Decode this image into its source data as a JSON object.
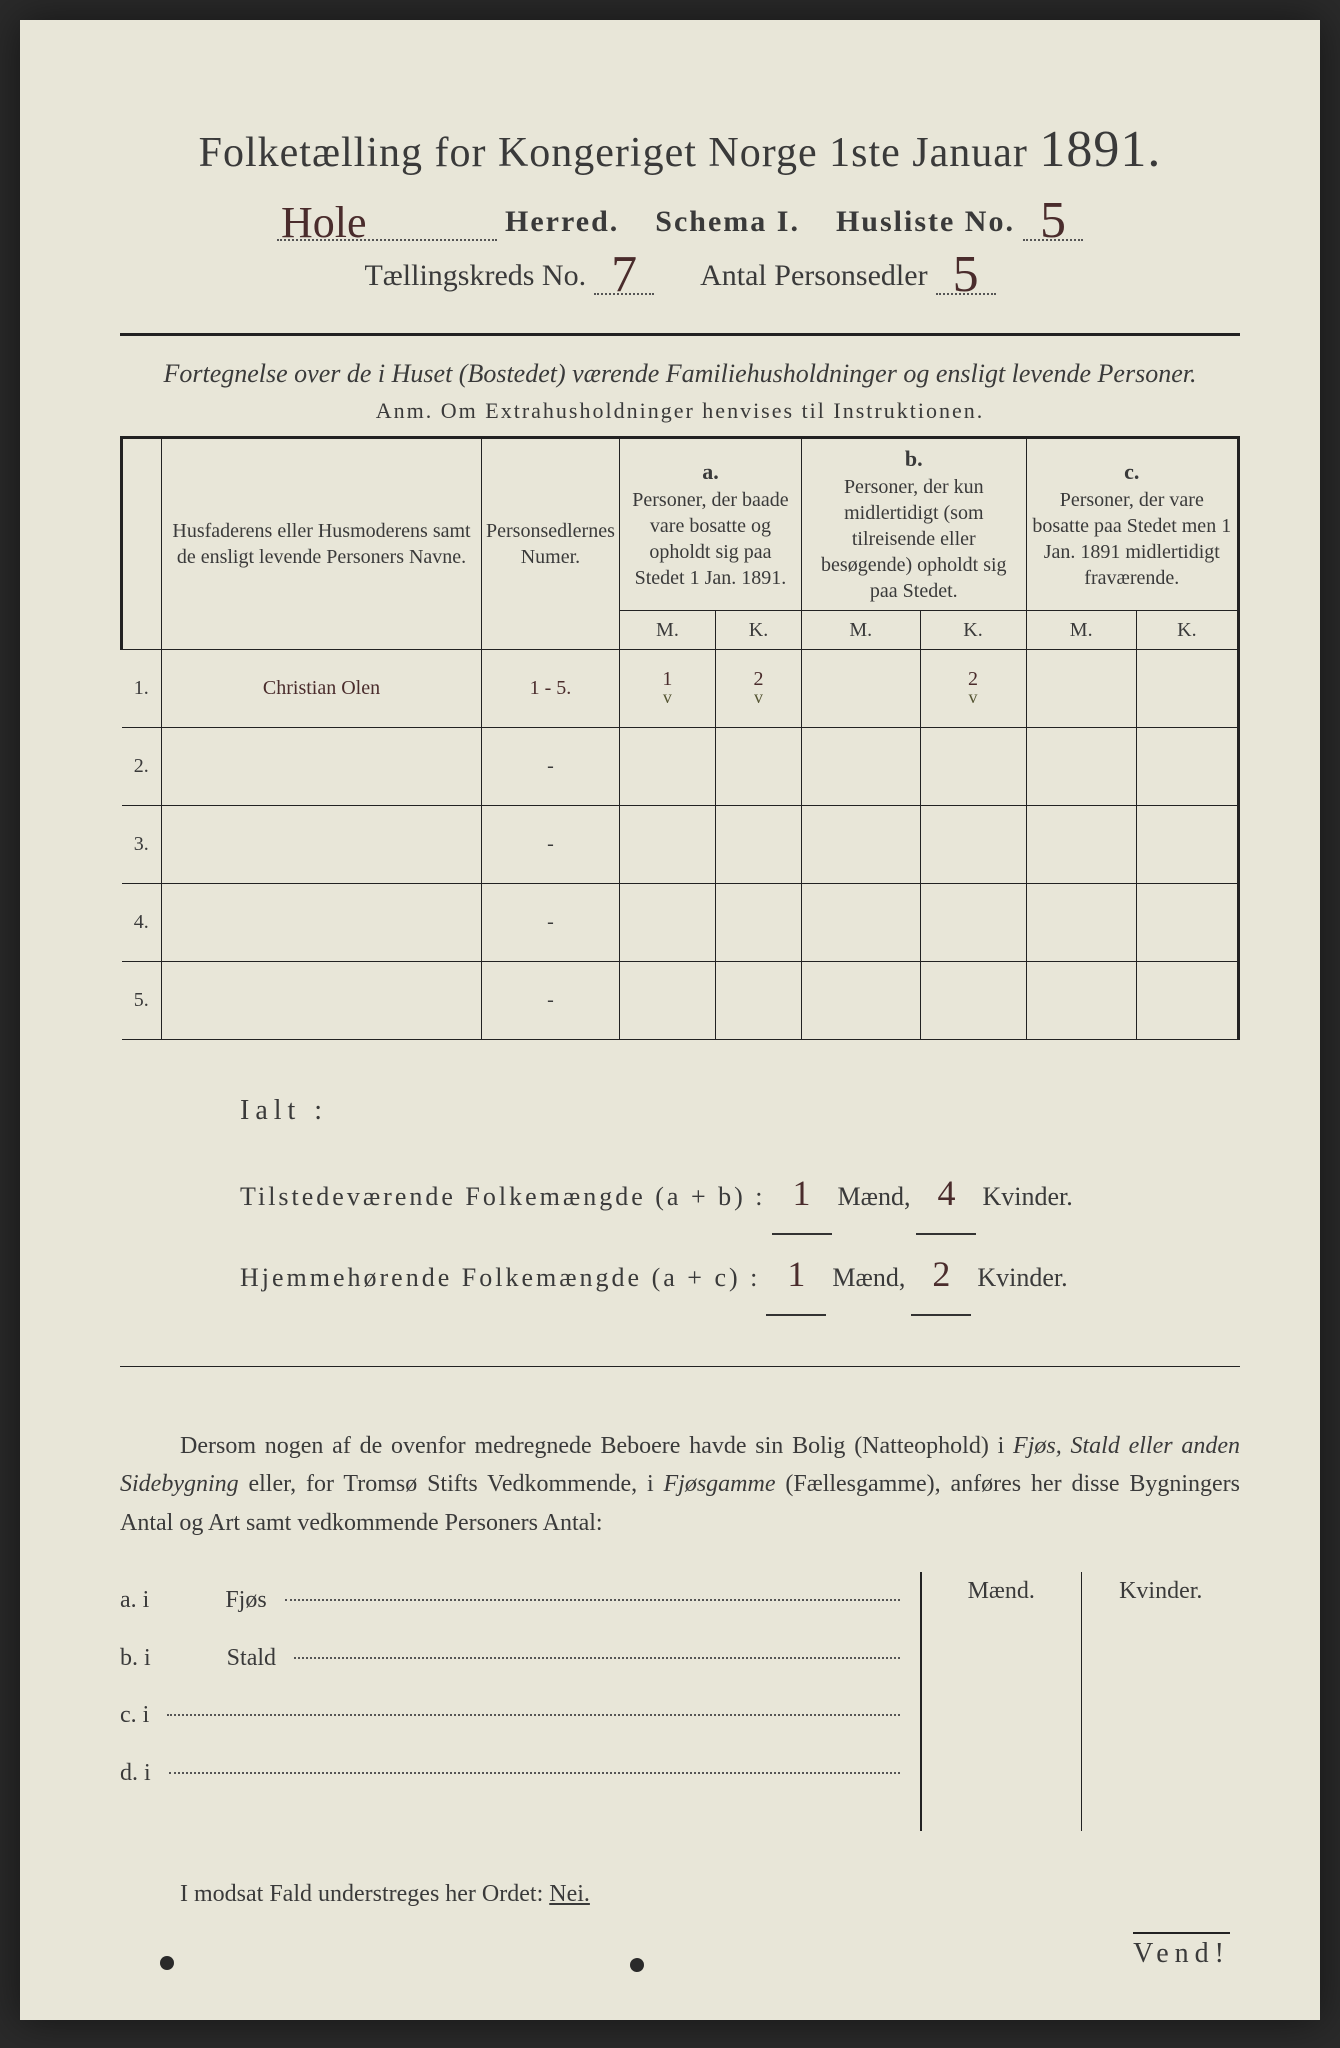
{
  "title": {
    "main": "Folketælling for Kongeriget Norge 1ste Januar",
    "year": "1891."
  },
  "header": {
    "herred_value": "Hole",
    "herred_label": "Herred.",
    "schema_label": "Schema I.",
    "husliste_label": "Husliste No.",
    "husliste_value": "5",
    "kreds_label": "Tællingskreds No.",
    "kreds_value": "7",
    "antal_label": "Antal Personsedler",
    "antal_value": "5"
  },
  "subtitle": "Fortegnelse over de i Huset (Bostedet) værende Familiehusholdninger og ensligt levende Personer.",
  "anm": "Anm.   Om Extrahusholdninger henvises til Instruktionen.",
  "table": {
    "col1": "Husfaderens eller Husmoderens samt de ensligt levende Personers Navne.",
    "col2": "Personsedlernes Numer.",
    "col_a_label": "a.",
    "col_a": "Personer, der baade vare bosatte og opholdt sig paa Stedet 1 Jan. 1891.",
    "col_b_label": "b.",
    "col_b": "Personer, der kun midlertidigt (som tilreisende eller besøgende) opholdt sig paa Stedet.",
    "col_c_label": "c.",
    "col_c": "Personer, der vare bosatte paa Stedet men 1 Jan. 1891 midlertidigt fraværende.",
    "mk_m": "M.",
    "mk_k": "K.",
    "rows": [
      {
        "n": "1.",
        "name": "Christian Olen",
        "sedler": "1 - 5.",
        "a_m": "1",
        "a_k": "2",
        "b_m": "",
        "b_k": "2",
        "c_m": "",
        "c_k": "",
        "checks": true
      },
      {
        "n": "2.",
        "name": "",
        "sedler": "-",
        "a_m": "",
        "a_k": "",
        "b_m": "",
        "b_k": "",
        "c_m": "",
        "c_k": ""
      },
      {
        "n": "3.",
        "name": "",
        "sedler": "-",
        "a_m": "",
        "a_k": "",
        "b_m": "",
        "b_k": "",
        "c_m": "",
        "c_k": ""
      },
      {
        "n": "4.",
        "name": "",
        "sedler": "-",
        "a_m": "",
        "a_k": "",
        "b_m": "",
        "b_k": "",
        "c_m": "",
        "c_k": ""
      },
      {
        "n": "5.",
        "name": "",
        "sedler": "-",
        "a_m": "",
        "a_k": "",
        "b_m": "",
        "b_k": "",
        "c_m": "",
        "c_k": ""
      }
    ]
  },
  "totals": {
    "ialt": "Ialt :",
    "line1_label": "Tilstedeværende Folkemængde (a + b) :",
    "line1_m": "1",
    "line1_k": "4",
    "line2_label": "Hjemmehørende Folkemængde (a + c) :",
    "line2_m": "1",
    "line2_k": "2",
    "maend": "Mænd,",
    "kvinder": "Kvinder."
  },
  "paragraph": {
    "text1": "Dersom nogen af de ovenfor medregnede Beboere havde sin Bolig (Natteophold) i ",
    "em1": "Fjøs, Stald eller anden Sidebygning",
    "text2": " eller, for Tromsø Stifts Vedkommende, i ",
    "em2": "Fjøsgamme",
    "text3": " (Fællesgamme), anføres her disse Bygningers ",
    "bold1": "Antal og Art",
    "text4": " samt vedkommende Personers Antal:"
  },
  "sidelist": {
    "a": "a.   i",
    "a_val": "Fjøs",
    "b": "b.   i",
    "b_val": "Stald",
    "c": "c.   i",
    "d": "d.   i",
    "maend": "Mænd.",
    "kvinder": "Kvinder."
  },
  "footer": {
    "text": "I modsat Fald understreges her Ordet: ",
    "nei": "Nei."
  },
  "vend": "Vend!",
  "colors": {
    "paper": "#e8e6d8",
    "ink": "#3a3a3a",
    "handwriting": "#4a2c2c",
    "background": "#2a2a2a"
  }
}
